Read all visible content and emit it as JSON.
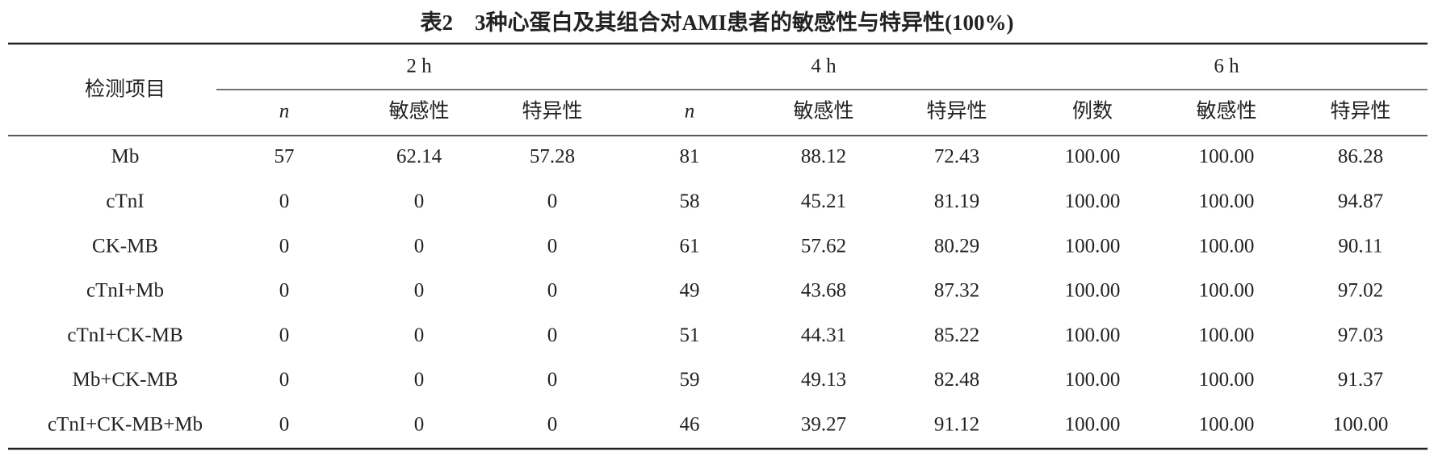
{
  "title": "表2　3种心蛋白及其组合对AMI患者的敏感性与特异性(100%)",
  "table": {
    "row_header": "检测项目",
    "groups": [
      "2 h",
      "4 h",
      "6 h"
    ],
    "columns": [
      "n",
      "敏感性",
      "特异性",
      "n",
      "敏感性",
      "特异性",
      "例数",
      "敏感性",
      "特异性"
    ],
    "rows": [
      [
        "Mb",
        "57",
        "62.14",
        "57.28",
        "81",
        "88.12",
        "72.43",
        "100.00",
        "100.00",
        "86.28"
      ],
      [
        "cTnI",
        "0",
        "0",
        "0",
        "58",
        "45.21",
        "81.19",
        "100.00",
        "100.00",
        "94.87"
      ],
      [
        "CK-MB",
        "0",
        "0",
        "0",
        "61",
        "57.62",
        "80.29",
        "100.00",
        "100.00",
        "90.11"
      ],
      [
        "cTnI+Mb",
        "0",
        "0",
        "0",
        "49",
        "43.68",
        "87.32",
        "100.00",
        "100.00",
        "97.02"
      ],
      [
        "cTnI+CK-MB",
        "0",
        "0",
        "0",
        "51",
        "44.31",
        "85.22",
        "100.00",
        "100.00",
        "97.03"
      ],
      [
        "Mb+CK-MB",
        "0",
        "0",
        "0",
        "59",
        "49.13",
        "82.48",
        "100.00",
        "100.00",
        "91.37"
      ],
      [
        "cTnI+CK-MB+Mb",
        "0",
        "0",
        "0",
        "46",
        "39.27",
        "91.12",
        "100.00",
        "100.00",
        "100.00"
      ]
    ]
  }
}
